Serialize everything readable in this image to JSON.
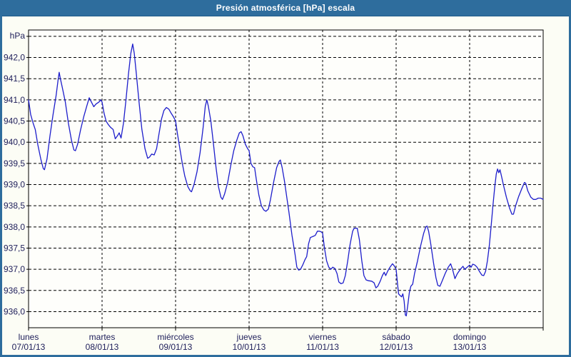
{
  "window": {
    "title": "Presión atmosférica [hPa] escala"
  },
  "colors": {
    "titlebar": "#2e6d9d",
    "window_border": "#2e6d9d",
    "window_bg": "#fcfdf5",
    "plot_bg": "#fefefb",
    "grid": "#000000",
    "plot_border": "#000000",
    "line": "#1d1dcb",
    "text": "#21215c",
    "title_text": "#ffffff"
  },
  "chart_data": {
    "type": "line",
    "title": "Presión atmosférica [hPa] escala",
    "unit_label": "hPa",
    "ylabel": "hPa",
    "xlabel": "",
    "grid": true,
    "legend_position": "none",
    "ylim": [
      935.62,
      942.65
    ],
    "xlim_hours": [
      0,
      168
    ],
    "y_gridlines": [
      942.5,
      942.0,
      941.5,
      941.0,
      940.5,
      940.0,
      939.5,
      939.0,
      938.5,
      938.0,
      937.5,
      937.0,
      936.5,
      936.0
    ],
    "y_tick_values": [
      942.0,
      941.5,
      941.0,
      940.5,
      940.0,
      939.5,
      939.0,
      938.5,
      938.0,
      937.5,
      937.0,
      936.5,
      936.0
    ],
    "y_tick_labels": [
      "942,0",
      "941,5",
      "941,0",
      "940,5",
      "940,0",
      "939,5",
      "939,0",
      "938,5",
      "938,0",
      "937,5",
      "937,0",
      "936,5",
      "936,0"
    ],
    "x_days": [
      {
        "day": "lunes",
        "date": "07/01/13"
      },
      {
        "day": "martes",
        "date": "08/01/13"
      },
      {
        "day": "miércoles",
        "date": "09/01/13"
      },
      {
        "day": "jueves",
        "date": "10/01/13"
      },
      {
        "day": "viernes",
        "date": "11/01/13"
      },
      {
        "day": "sábado",
        "date": "12/01/13"
      },
      {
        "day": "domingo",
        "date": "13/01/13"
      }
    ],
    "series": [
      {
        "name": "Presión atmosférica",
        "color": "#1d1dcb",
        "points": [
          [
            0,
            941.0
          ],
          [
            0.7,
            940.65
          ],
          [
            1.5,
            940.45
          ],
          [
            2.2,
            940.3
          ],
          [
            3,
            939.95
          ],
          [
            4,
            939.6
          ],
          [
            4.8,
            939.38
          ],
          [
            5.2,
            939.35
          ],
          [
            6,
            939.6
          ],
          [
            7,
            940.15
          ],
          [
            8,
            940.65
          ],
          [
            9,
            941.1
          ],
          [
            9.7,
            941.5
          ],
          [
            10,
            941.65
          ],
          [
            10.4,
            941.5
          ],
          [
            11,
            941.3
          ],
          [
            12,
            940.95
          ],
          [
            13,
            940.45
          ],
          [
            14,
            940.05
          ],
          [
            14.8,
            939.82
          ],
          [
            15.3,
            939.8
          ],
          [
            16,
            939.95
          ],
          [
            17,
            940.3
          ],
          [
            18,
            940.6
          ],
          [
            19,
            940.85
          ],
          [
            19.8,
            941.05
          ],
          [
            20.5,
            940.95
          ],
          [
            21.3,
            940.84
          ],
          [
            22,
            940.9
          ],
          [
            23,
            940.95
          ],
          [
            23.6,
            941.0
          ],
          [
            24,
            940.95
          ],
          [
            24.6,
            940.7
          ],
          [
            25.3,
            940.5
          ],
          [
            26,
            940.42
          ],
          [
            26.8,
            940.35
          ],
          [
            27.6,
            940.3
          ],
          [
            28.3,
            940.08
          ],
          [
            29,
            940.15
          ],
          [
            29.6,
            940.22
          ],
          [
            30.2,
            940.1
          ],
          [
            31,
            940.45
          ],
          [
            31.8,
            941.0
          ],
          [
            32.6,
            941.6
          ],
          [
            33.4,
            942.1
          ],
          [
            34,
            942.32
          ],
          [
            34.5,
            942.1
          ],
          [
            35.2,
            941.6
          ],
          [
            36,
            941.0
          ],
          [
            37,
            940.3
          ],
          [
            38,
            939.85
          ],
          [
            38.9,
            939.62
          ],
          [
            39.5,
            939.65
          ],
          [
            40.2,
            939.72
          ],
          [
            41,
            939.7
          ],
          [
            41.8,
            939.85
          ],
          [
            42.6,
            940.2
          ],
          [
            43.4,
            940.55
          ],
          [
            44.2,
            940.75
          ],
          [
            45,
            940.82
          ],
          [
            45.8,
            940.78
          ],
          [
            46.6,
            940.68
          ],
          [
            47.3,
            940.6
          ],
          [
            48,
            940.5
          ],
          [
            48.6,
            940.2
          ],
          [
            49.4,
            939.85
          ],
          [
            50.2,
            939.5
          ],
          [
            51,
            939.2
          ],
          [
            52,
            938.95
          ],
          [
            52.8,
            938.85
          ],
          [
            53.2,
            938.83
          ],
          [
            54,
            939.0
          ],
          [
            55,
            939.3
          ],
          [
            56,
            939.75
          ],
          [
            57,
            940.35
          ],
          [
            57.7,
            940.85
          ],
          [
            58.2,
            941.0
          ],
          [
            58.7,
            940.85
          ],
          [
            59.5,
            940.5
          ],
          [
            60.3,
            940.0
          ],
          [
            61.2,
            939.4
          ],
          [
            62,
            938.95
          ],
          [
            62.8,
            938.7
          ],
          [
            63.3,
            938.65
          ],
          [
            64,
            938.78
          ],
          [
            65,
            939.05
          ],
          [
            66,
            939.45
          ],
          [
            67,
            939.8
          ],
          [
            68,
            940.05
          ],
          [
            68.8,
            940.22
          ],
          [
            69.4,
            940.25
          ],
          [
            70,
            940.15
          ],
          [
            70.8,
            939.95
          ],
          [
            71.5,
            939.85
          ],
          [
            72,
            939.8
          ],
          [
            72.6,
            939.5
          ],
          [
            73.2,
            939.42
          ],
          [
            73.8,
            939.4
          ],
          [
            74.4,
            939.1
          ],
          [
            75.2,
            938.75
          ],
          [
            76,
            938.5
          ],
          [
            76.8,
            938.4
          ],
          [
            77.5,
            938.37
          ],
          [
            78.3,
            938.42
          ],
          [
            79,
            938.65
          ],
          [
            80,
            939.05
          ],
          [
            81,
            939.4
          ],
          [
            81.8,
            939.55
          ],
          [
            82.2,
            939.58
          ],
          [
            82.8,
            939.4
          ],
          [
            83.5,
            939.1
          ],
          [
            84.3,
            938.7
          ],
          [
            85,
            938.35
          ],
          [
            86,
            937.8
          ],
          [
            87,
            937.35
          ],
          [
            87.6,
            937.05
          ],
          [
            88.2,
            936.98
          ],
          [
            88.8,
            937.0
          ],
          [
            89.5,
            937.1
          ],
          [
            90.2,
            937.22
          ],
          [
            90.8,
            937.3
          ],
          [
            91.4,
            937.6
          ],
          [
            92,
            937.75
          ],
          [
            93,
            937.78
          ],
          [
            93.6,
            937.8
          ],
          [
            94.3,
            937.9
          ],
          [
            95,
            937.9
          ],
          [
            95.6,
            937.88
          ],
          [
            96,
            937.85
          ],
          [
            96.6,
            937.5
          ],
          [
            97.3,
            937.2
          ],
          [
            98,
            937.05
          ],
          [
            98.7,
            937.0
          ],
          [
            99.3,
            937.05
          ],
          [
            100,
            937.02
          ],
          [
            100.7,
            936.9
          ],
          [
            101.3,
            936.7
          ],
          [
            102,
            936.66
          ],
          [
            102.7,
            936.68
          ],
          [
            103.4,
            936.85
          ],
          [
            104.2,
            937.2
          ],
          [
            105,
            937.6
          ],
          [
            105.8,
            937.9
          ],
          [
            106.3,
            937.97
          ],
          [
            107.3,
            937.97
          ],
          [
            108,
            937.7
          ],
          [
            108.8,
            937.2
          ],
          [
            109.5,
            936.85
          ],
          [
            110.2,
            936.75
          ],
          [
            111,
            936.73
          ],
          [
            112,
            936.72
          ],
          [
            112.8,
            936.68
          ],
          [
            113.4,
            936.56
          ],
          [
            114,
            936.6
          ],
          [
            114.8,
            936.72
          ],
          [
            115.5,
            936.85
          ],
          [
            116.1,
            936.93
          ],
          [
            116.6,
            936.85
          ],
          [
            117.2,
            936.95
          ],
          [
            118,
            937.05
          ],
          [
            118.8,
            937.13
          ],
          [
            119.4,
            937.08
          ],
          [
            120,
            937.0
          ],
          [
            120.4,
            936.7
          ],
          [
            120.8,
            936.42
          ],
          [
            121.3,
            936.38
          ],
          [
            121.8,
            936.35
          ],
          [
            122.2,
            936.42
          ],
          [
            122.6,
            936.25
          ],
          [
            123,
            935.92
          ],
          [
            123.3,
            935.9
          ],
          [
            123.8,
            936.15
          ],
          [
            124.3,
            936.45
          ],
          [
            124.8,
            936.6
          ],
          [
            125.4,
            936.65
          ],
          [
            126,
            936.9
          ],
          [
            127,
            937.2
          ],
          [
            128,
            937.55
          ],
          [
            129,
            937.85
          ],
          [
            129.7,
            938.0
          ],
          [
            130.1,
            938.02
          ],
          [
            130.6,
            937.9
          ],
          [
            131.3,
            937.6
          ],
          [
            132.2,
            937.15
          ],
          [
            133,
            936.8
          ],
          [
            133.6,
            936.62
          ],
          [
            134.3,
            936.6
          ],
          [
            135,
            936.72
          ],
          [
            136,
            936.9
          ],
          [
            137,
            937.05
          ],
          [
            137.8,
            937.13
          ],
          [
            138.4,
            937.0
          ],
          [
            139.2,
            936.78
          ],
          [
            140,
            936.9
          ],
          [
            141,
            937.0
          ],
          [
            141.8,
            937.07
          ],
          [
            142.4,
            937.0
          ],
          [
            143.2,
            937.05
          ],
          [
            144,
            937.1
          ],
          [
            144.5,
            937.05
          ],
          [
            145,
            937.12
          ],
          [
            145.7,
            937.1
          ],
          [
            146.4,
            937.05
          ],
          [
            147.2,
            936.95
          ],
          [
            148,
            936.86
          ],
          [
            148.6,
            936.85
          ],
          [
            149.2,
            936.95
          ],
          [
            149.8,
            937.2
          ],
          [
            150.4,
            937.55
          ],
          [
            151,
            938.0
          ],
          [
            151.6,
            938.5
          ],
          [
            152.2,
            938.95
          ],
          [
            152.7,
            939.25
          ],
          [
            153.1,
            939.37
          ],
          [
            153.5,
            939.28
          ],
          [
            153.9,
            939.35
          ],
          [
            154.4,
            939.2
          ],
          [
            155,
            939.0
          ],
          [
            156,
            938.7
          ],
          [
            157,
            938.45
          ],
          [
            157.8,
            938.3
          ],
          [
            158.3,
            938.3
          ],
          [
            159,
            938.5
          ],
          [
            160,
            938.72
          ],
          [
            161,
            938.9
          ],
          [
            161.9,
            939.05
          ],
          [
            162.3,
            939.03
          ],
          [
            163,
            938.85
          ],
          [
            164,
            938.7
          ],
          [
            164.8,
            938.65
          ],
          [
            165.6,
            938.65
          ],
          [
            166.4,
            938.68
          ],
          [
            167.2,
            938.68
          ],
          [
            168,
            938.65
          ]
        ]
      }
    ]
  }
}
